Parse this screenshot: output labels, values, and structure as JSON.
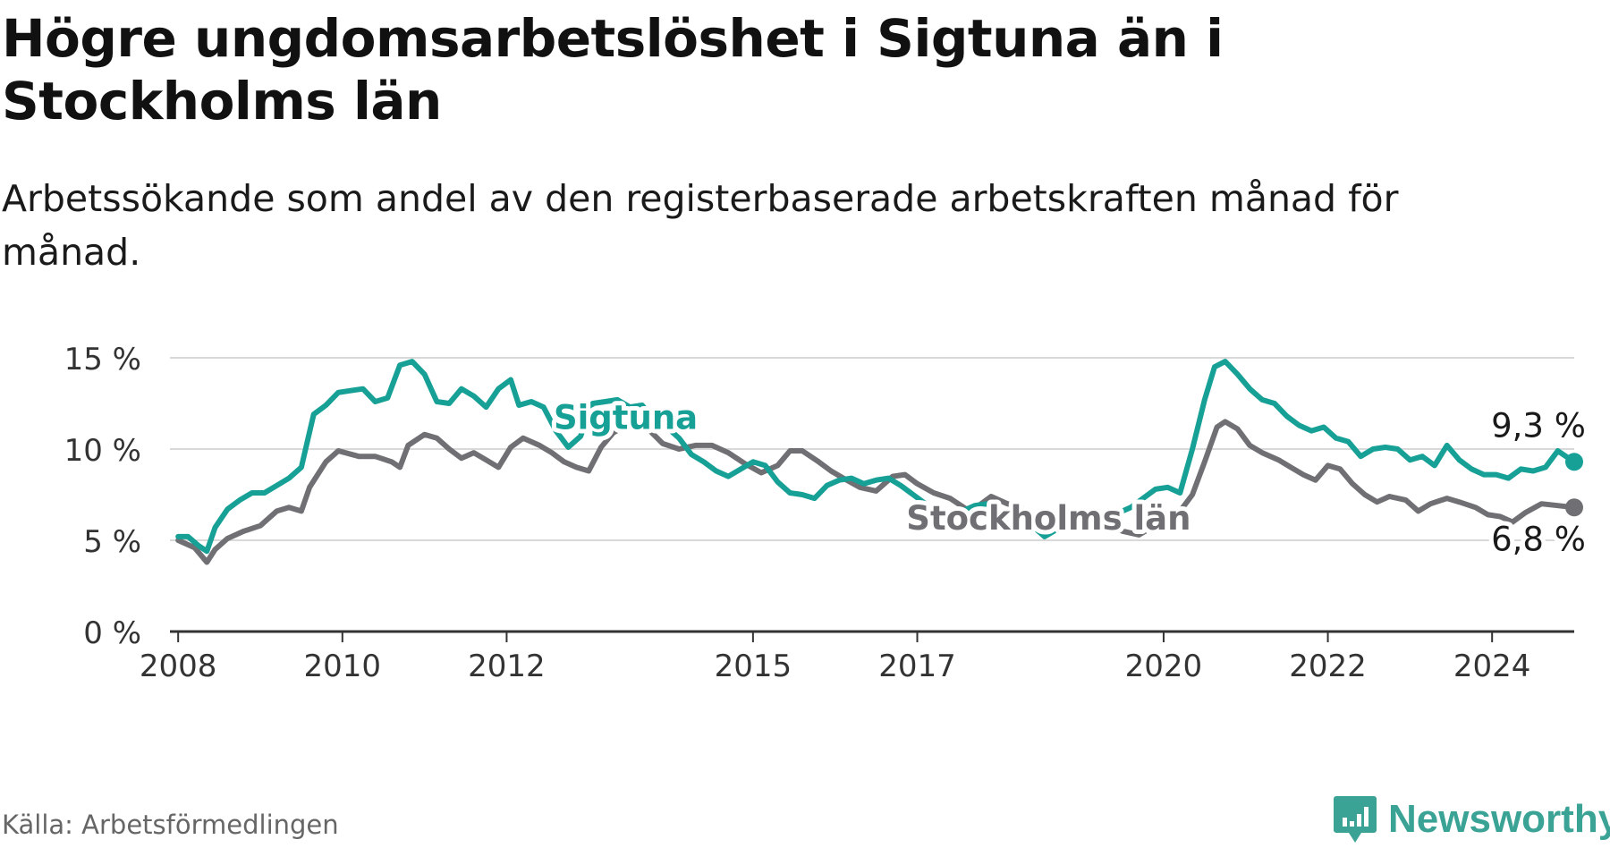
{
  "header": {
    "title": "Högre ungdomsarbetslöshet i Sigtuna än i Stockholms län",
    "subtitle": "Arbetssökande som andel av den registerbaserade arbetskraften månad för månad."
  },
  "source": "Källa: Arbetsförmedlingen",
  "brand": {
    "name": "Newsworthy"
  },
  "colors": {
    "sigtuna": "#16a096",
    "stockholm": "#6f6f74",
    "grid": "#d9d9d9",
    "axis": "#333333",
    "brand": "#3aa395"
  },
  "chart_data": {
    "type": "line",
    "title": "Högre ungdomsarbetslöshet i Sigtuna än i Stockholms län",
    "xlabel": "",
    "ylabel": "",
    "ylim": [
      0,
      15
    ],
    "xlim": [
      2007.9,
      2025.0
    ],
    "x_ticks": [
      2008,
      2010,
      2012,
      2015,
      2017,
      2020,
      2022,
      2024
    ],
    "x_tick_labels": [
      "2008",
      "2010",
      "2012",
      "2015",
      "2017",
      "2020",
      "2022",
      "2024"
    ],
    "y_ticks": [
      0,
      5,
      10,
      15
    ],
    "y_tick_labels": [
      "0 %",
      "5 %",
      "10 %",
      "15 %"
    ],
    "grid": true,
    "series": [
      {
        "name": "Stockholms län",
        "label": "Stockholms län",
        "end_label": "6,8 %",
        "points": [
          [
            2008.0,
            5.0
          ],
          [
            2008.2,
            4.6
          ],
          [
            2008.35,
            3.8
          ],
          [
            2008.45,
            4.5
          ],
          [
            2008.6,
            5.1
          ],
          [
            2008.8,
            5.5
          ],
          [
            2009.0,
            5.8
          ],
          [
            2009.2,
            6.6
          ],
          [
            2009.35,
            6.8
          ],
          [
            2009.5,
            6.6
          ],
          [
            2009.6,
            7.9
          ],
          [
            2009.8,
            9.3
          ],
          [
            2009.95,
            9.9
          ],
          [
            2010.2,
            9.6
          ],
          [
            2010.4,
            9.6
          ],
          [
            2010.6,
            9.3
          ],
          [
            2010.7,
            9.0
          ],
          [
            2010.8,
            10.2
          ],
          [
            2011.0,
            10.8
          ],
          [
            2011.15,
            10.6
          ],
          [
            2011.3,
            10.0
          ],
          [
            2011.45,
            9.5
          ],
          [
            2011.6,
            9.8
          ],
          [
            2011.75,
            9.4
          ],
          [
            2011.9,
            9.0
          ],
          [
            2012.05,
            10.1
          ],
          [
            2012.2,
            10.6
          ],
          [
            2012.4,
            10.2
          ],
          [
            2012.55,
            9.8
          ],
          [
            2012.7,
            9.3
          ],
          [
            2012.85,
            9.0
          ],
          [
            2013.0,
            8.8
          ],
          [
            2013.15,
            10.1
          ],
          [
            2013.3,
            10.9
          ],
          [
            2013.5,
            11.4
          ],
          [
            2013.7,
            11.2
          ],
          [
            2013.9,
            10.3
          ],
          [
            2014.1,
            10.0
          ],
          [
            2014.3,
            10.2
          ],
          [
            2014.5,
            10.2
          ],
          [
            2014.7,
            9.8
          ],
          [
            2014.9,
            9.2
          ],
          [
            2015.1,
            8.7
          ],
          [
            2015.3,
            9.1
          ],
          [
            2015.45,
            9.9
          ],
          [
            2015.6,
            9.9
          ],
          [
            2015.8,
            9.3
          ],
          [
            2015.95,
            8.8
          ],
          [
            2016.1,
            8.4
          ],
          [
            2016.3,
            7.9
          ],
          [
            2016.5,
            7.7
          ],
          [
            2016.7,
            8.5
          ],
          [
            2016.85,
            8.6
          ],
          [
            2017.0,
            8.1
          ],
          [
            2017.2,
            7.6
          ],
          [
            2017.4,
            7.3
          ],
          [
            2017.6,
            6.7
          ],
          [
            2017.75,
            6.9
          ],
          [
            2017.9,
            7.4
          ],
          [
            2018.1,
            7.0
          ],
          [
            2018.3,
            6.7
          ],
          [
            2018.5,
            6.2
          ],
          [
            2018.7,
            6.1
          ],
          [
            2018.9,
            5.8
          ],
          [
            2019.1,
            5.9
          ],
          [
            2019.3,
            5.8
          ],
          [
            2019.5,
            5.5
          ],
          [
            2019.7,
            5.3
          ],
          [
            2019.85,
            5.7
          ],
          [
            2020.0,
            5.9
          ],
          [
            2020.2,
            6.6
          ],
          [
            2020.35,
            7.5
          ],
          [
            2020.5,
            9.3
          ],
          [
            2020.65,
            11.2
          ],
          [
            2020.75,
            11.5
          ],
          [
            2020.9,
            11.1
          ],
          [
            2021.05,
            10.2
          ],
          [
            2021.2,
            9.8
          ],
          [
            2021.4,
            9.4
          ],
          [
            2021.55,
            9.0
          ],
          [
            2021.7,
            8.6
          ],
          [
            2021.85,
            8.3
          ],
          [
            2022.0,
            9.1
          ],
          [
            2022.15,
            8.9
          ],
          [
            2022.3,
            8.1
          ],
          [
            2022.45,
            7.5
          ],
          [
            2022.6,
            7.1
          ],
          [
            2022.75,
            7.4
          ],
          [
            2022.95,
            7.2
          ],
          [
            2023.1,
            6.6
          ],
          [
            2023.25,
            7.0
          ],
          [
            2023.45,
            7.3
          ],
          [
            2023.6,
            7.1
          ],
          [
            2023.8,
            6.8
          ],
          [
            2023.95,
            6.4
          ],
          [
            2024.1,
            6.3
          ],
          [
            2024.25,
            6.0
          ],
          [
            2024.4,
            6.5
          ],
          [
            2024.6,
            7.0
          ],
          [
            2024.8,
            6.9
          ],
          [
            2025.0,
            6.8
          ]
        ]
      },
      {
        "name": "Sigtuna",
        "label": "Sigtuna",
        "end_label": "9,3 %",
        "points": [
          [
            2008.0,
            5.2
          ],
          [
            2008.12,
            5.2
          ],
          [
            2008.25,
            4.7
          ],
          [
            2008.35,
            4.4
          ],
          [
            2008.45,
            5.7
          ],
          [
            2008.6,
            6.7
          ],
          [
            2008.75,
            7.2
          ],
          [
            2008.9,
            7.6
          ],
          [
            2009.05,
            7.6
          ],
          [
            2009.2,
            8.0
          ],
          [
            2009.35,
            8.4
          ],
          [
            2009.5,
            9.0
          ],
          [
            2009.65,
            11.9
          ],
          [
            2009.8,
            12.4
          ],
          [
            2009.95,
            13.1
          ],
          [
            2010.1,
            13.2
          ],
          [
            2010.25,
            13.3
          ],
          [
            2010.4,
            12.6
          ],
          [
            2010.55,
            12.8
          ],
          [
            2010.7,
            14.6
          ],
          [
            2010.85,
            14.8
          ],
          [
            2011.0,
            14.1
          ],
          [
            2011.15,
            12.6
          ],
          [
            2011.3,
            12.5
          ],
          [
            2011.45,
            13.3
          ],
          [
            2011.6,
            12.9
          ],
          [
            2011.75,
            12.3
          ],
          [
            2011.9,
            13.3
          ],
          [
            2012.05,
            13.8
          ],
          [
            2012.15,
            12.4
          ],
          [
            2012.3,
            12.6
          ],
          [
            2012.45,
            12.3
          ],
          [
            2012.6,
            11.0
          ],
          [
            2012.75,
            10.1
          ],
          [
            2012.9,
            10.7
          ],
          [
            2013.05,
            12.5
          ],
          [
            2013.2,
            12.6
          ],
          [
            2013.35,
            12.7
          ],
          [
            2013.5,
            12.3
          ],
          [
            2013.65,
            12.4
          ],
          [
            2013.8,
            11.6
          ],
          [
            2013.95,
            11.2
          ],
          [
            2014.1,
            10.6
          ],
          [
            2014.25,
            9.7
          ],
          [
            2014.4,
            9.3
          ],
          [
            2014.55,
            8.8
          ],
          [
            2014.7,
            8.5
          ],
          [
            2014.85,
            8.9
          ],
          [
            2015.0,
            9.3
          ],
          [
            2015.15,
            9.1
          ],
          [
            2015.3,
            8.2
          ],
          [
            2015.45,
            7.6
          ],
          [
            2015.6,
            7.5
          ],
          [
            2015.75,
            7.3
          ],
          [
            2015.9,
            8.0
          ],
          [
            2016.05,
            8.3
          ],
          [
            2016.2,
            8.4
          ],
          [
            2016.35,
            8.1
          ],
          [
            2016.5,
            8.3
          ],
          [
            2016.65,
            8.4
          ],
          [
            2016.8,
            8.0
          ],
          [
            2016.95,
            7.5
          ],
          [
            2017.1,
            7.0
          ],
          [
            2017.25,
            6.6
          ],
          [
            2017.4,
            6.3
          ],
          [
            2017.55,
            6.6
          ],
          [
            2017.7,
            6.9
          ],
          [
            2017.85,
            7.0
          ],
          [
            2018.0,
            6.7
          ],
          [
            2018.15,
            6.4
          ],
          [
            2018.3,
            6.1
          ],
          [
            2018.45,
            5.6
          ],
          [
            2018.55,
            5.2
          ],
          [
            2018.7,
            5.6
          ],
          [
            2018.85,
            6.0
          ],
          [
            2019.0,
            6.2
          ],
          [
            2019.15,
            6.1
          ],
          [
            2019.3,
            6.3
          ],
          [
            2019.45,
            6.5
          ],
          [
            2019.6,
            6.8
          ],
          [
            2019.75,
            7.3
          ],
          [
            2019.9,
            7.8
          ],
          [
            2020.05,
            7.9
          ],
          [
            2020.2,
            7.6
          ],
          [
            2020.35,
            10.0
          ],
          [
            2020.5,
            12.7
          ],
          [
            2020.62,
            14.5
          ],
          [
            2020.75,
            14.8
          ],
          [
            2020.9,
            14.1
          ],
          [
            2021.05,
            13.3
          ],
          [
            2021.2,
            12.7
          ],
          [
            2021.35,
            12.5
          ],
          [
            2021.5,
            11.8
          ],
          [
            2021.65,
            11.3
          ],
          [
            2021.8,
            11.0
          ],
          [
            2021.95,
            11.2
          ],
          [
            2022.1,
            10.6
          ],
          [
            2022.25,
            10.4
          ],
          [
            2022.4,
            9.6
          ],
          [
            2022.55,
            10.0
          ],
          [
            2022.7,
            10.1
          ],
          [
            2022.85,
            10.0
          ],
          [
            2023.0,
            9.4
          ],
          [
            2023.15,
            9.6
          ],
          [
            2023.3,
            9.1
          ],
          [
            2023.45,
            10.2
          ],
          [
            2023.6,
            9.4
          ],
          [
            2023.75,
            8.9
          ],
          [
            2023.9,
            8.6
          ],
          [
            2024.05,
            8.6
          ],
          [
            2024.2,
            8.4
          ],
          [
            2024.35,
            8.9
          ],
          [
            2024.5,
            8.8
          ],
          [
            2024.65,
            9.0
          ],
          [
            2024.8,
            9.9
          ],
          [
            2024.9,
            9.6
          ],
          [
            2025.0,
            9.3
          ]
        ]
      }
    ]
  }
}
